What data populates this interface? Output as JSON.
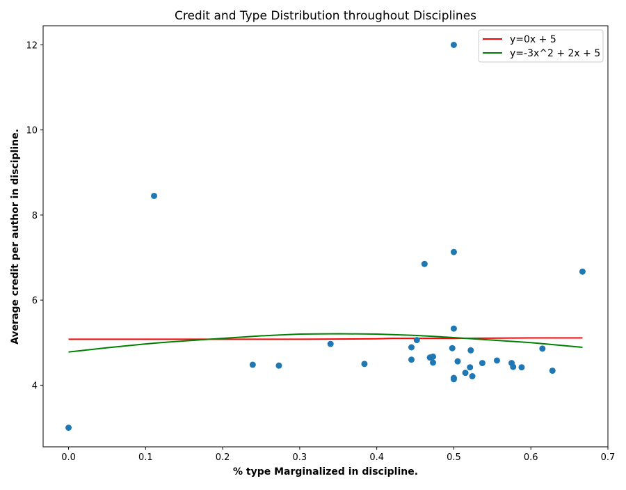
{
  "chart_data": {
    "type": "scatter",
    "title": "Credit and Type Distribution throughout Disciplines",
    "xlabel": "% type Marginalized in discipline.",
    "ylabel": "Average credit per author in discipline.",
    "xlim": [
      -0.033,
      0.7
    ],
    "ylim": [
      2.55,
      12.45
    ],
    "x_ticks": [
      0.0,
      0.1,
      0.2,
      0.3,
      0.4,
      0.5,
      0.6,
      0.7
    ],
    "x_tick_labels": [
      "0.0",
      "0.1",
      "0.2",
      "0.3",
      "0.4",
      "0.5",
      "0.6",
      "0.7"
    ],
    "y_ticks": [
      4,
      6,
      8,
      10,
      12
    ],
    "y_tick_labels": [
      "4",
      "6",
      "8",
      "10",
      "12"
    ],
    "grid": false,
    "legend_position": "top-right",
    "points": [
      {
        "x": 0.0,
        "y": 3.0
      },
      {
        "x": 0.111,
        "y": 8.45
      },
      {
        "x": 0.239,
        "y": 4.48
      },
      {
        "x": 0.273,
        "y": 4.46
      },
      {
        "x": 0.34,
        "y": 4.97
      },
      {
        "x": 0.384,
        "y": 4.5
      },
      {
        "x": 0.445,
        "y": 4.6
      },
      {
        "x": 0.445,
        "y": 4.89
      },
      {
        "x": 0.452,
        "y": 5.06
      },
      {
        "x": 0.462,
        "y": 6.85
      },
      {
        "x": 0.469,
        "y": 4.65
      },
      {
        "x": 0.473,
        "y": 4.53
      },
      {
        "x": 0.473,
        "y": 4.67
      },
      {
        "x": 0.498,
        "y": 4.87
      },
      {
        "x": 0.5,
        "y": 12.0
      },
      {
        "x": 0.5,
        "y": 7.13
      },
      {
        "x": 0.5,
        "y": 5.33
      },
      {
        "x": 0.5,
        "y": 4.17
      },
      {
        "x": 0.5,
        "y": 4.14
      },
      {
        "x": 0.505,
        "y": 4.56
      },
      {
        "x": 0.515,
        "y": 4.29
      },
      {
        "x": 0.521,
        "y": 4.42
      },
      {
        "x": 0.522,
        "y": 4.82
      },
      {
        "x": 0.524,
        "y": 4.21
      },
      {
        "x": 0.537,
        "y": 4.52
      },
      {
        "x": 0.556,
        "y": 4.58
      },
      {
        "x": 0.575,
        "y": 4.52
      },
      {
        "x": 0.577,
        "y": 4.43
      },
      {
        "x": 0.588,
        "y": 4.42
      },
      {
        "x": 0.615,
        "y": 4.86
      },
      {
        "x": 0.628,
        "y": 4.34
      },
      {
        "x": 0.667,
        "y": 6.67
      }
    ],
    "point_color": "#1f77b4",
    "lines": [
      {
        "name": "y=0x + 5",
        "color": "#ff0000",
        "x": [
          0.0,
          0.1,
          0.2,
          0.3,
          0.4,
          0.42,
          0.5,
          0.6,
          0.667
        ],
        "y": [
          5.08,
          5.08,
          5.08,
          5.08,
          5.09,
          5.1,
          5.1,
          5.11,
          5.11
        ]
      },
      {
        "name": "y=-3x^2 + 2x + 5",
        "color": "#008000",
        "x": [
          0.0,
          0.05,
          0.1,
          0.12,
          0.15,
          0.2,
          0.25,
          0.3,
          0.35,
          0.4,
          0.45,
          0.5,
          0.55,
          0.6,
          0.667
        ],
        "y": [
          4.78,
          4.88,
          4.97,
          5.0,
          5.04,
          5.1,
          5.16,
          5.2,
          5.21,
          5.2,
          5.17,
          5.12,
          5.06,
          5.0,
          4.89
        ]
      }
    ]
  }
}
